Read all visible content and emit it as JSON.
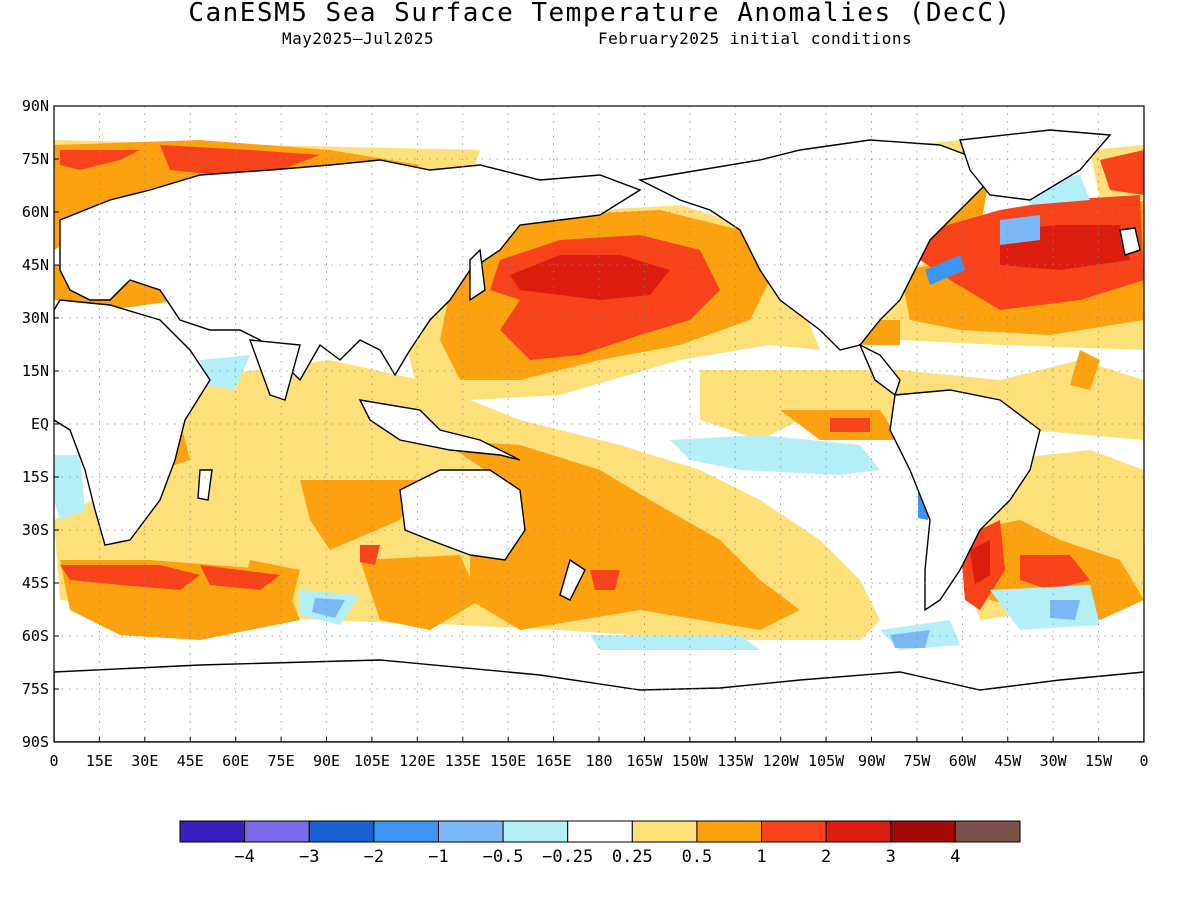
{
  "title": "CanESM5 Sea Surface Temperature Anomalies (DecC)",
  "subtitle_left": "May2025–Jul2025",
  "subtitle_right": "February2025 initial conditions",
  "lat_labels": [
    "90N",
    "75N",
    "60N",
    "45N",
    "30N",
    "15N",
    "EQ",
    "15S",
    "30S",
    "45S",
    "60S",
    "75S",
    "90S"
  ],
  "lon_labels": [
    "0",
    "15E",
    "30E",
    "45E",
    "60E",
    "75E",
    "90E",
    "105E",
    "120E",
    "135E",
    "150E",
    "165E",
    "180",
    "165W",
    "150W",
    "135W",
    "120W",
    "105W",
    "90W",
    "75W",
    "60W",
    "45W",
    "30W",
    "15W",
    "0"
  ],
  "colorbar": {
    "colors": [
      "#3a1fbf",
      "#7b6be8",
      "#1a5fd0",
      "#3c95f2",
      "#7cb8f5",
      "#b4eff8",
      "#ffffff",
      "#fde07a",
      "#fca10f",
      "#f8421a",
      "#dd1c10",
      "#a10909",
      "#7a5249"
    ],
    "tick_labels": [
      "−4",
      "−3",
      "−2",
      "−1",
      "−0.5",
      "−0.25",
      "0.25",
      "0.5",
      "1",
      "2",
      "3",
      "4"
    ]
  }
}
